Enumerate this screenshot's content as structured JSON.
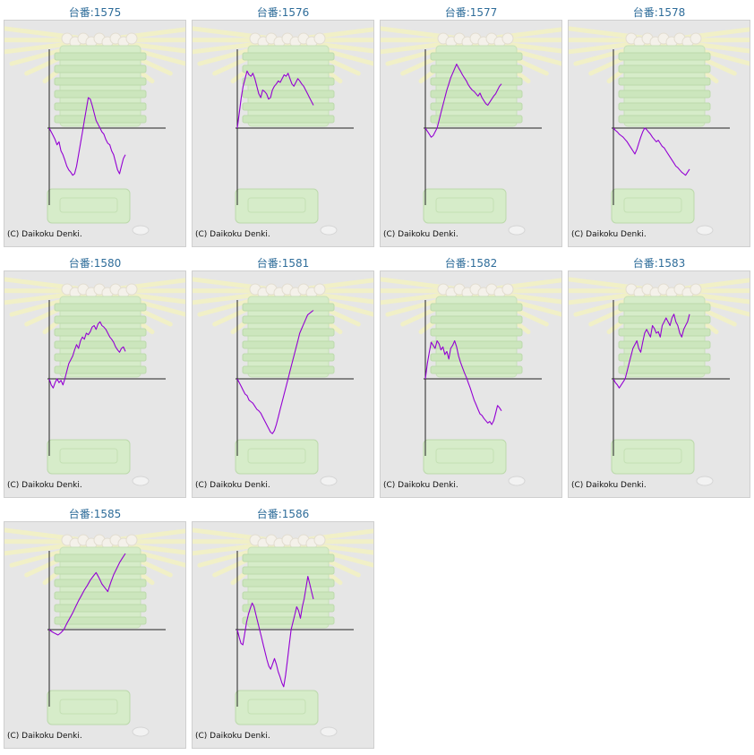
{
  "colors": {
    "title": "#2f6d9a",
    "line": "#9400d3",
    "axis": "#222222",
    "panel_bg": "#e6e6e6"
  },
  "copyright": "(C) Daikoku Denki.",
  "chart_data": [
    {
      "type": "line",
      "title": "台番:1575",
      "values": [
        0,
        -5,
        -10,
        -15,
        -22,
        -18,
        -30,
        -35,
        -42,
        -50,
        -55,
        -58,
        -62,
        -60,
        -50,
        -35,
        -20,
        -5,
        10,
        25,
        40,
        38,
        30,
        20,
        10,
        5,
        0,
        -5,
        -8,
        -15,
        -20,
        -22,
        -30,
        -35,
        -45,
        -55,
        -60,
        -50,
        -40,
        -35
      ]
    },
    {
      "type": "line",
      "title": "台番:1576",
      "values": [
        0,
        20,
        40,
        55,
        65,
        75,
        70,
        68,
        72,
        65,
        55,
        45,
        40,
        50,
        48,
        45,
        38,
        40,
        50,
        55,
        58,
        62,
        60,
        65,
        70,
        68,
        72,
        65,
        58,
        55,
        60,
        65,
        62,
        58,
        55,
        50,
        45,
        40,
        35,
        30
      ]
    },
    {
      "type": "line",
      "title": "台番:1577",
      "values": [
        0,
        -4,
        -8,
        -12,
        -10,
        -5,
        0,
        10,
        20,
        30,
        40,
        50,
        58,
        66,
        72,
        78,
        84,
        79,
        75,
        70,
        66,
        62,
        57,
        53,
        50,
        48,
        45,
        42,
        46,
        40,
        36,
        32,
        30,
        34,
        38,
        42,
        45,
        50,
        55,
        58
      ]
    },
    {
      "type": "line",
      "title": "台番:1578",
      "values": [
        0,
        -3,
        -5,
        -8,
        -10,
        -12,
        -15,
        -18,
        -22,
        -26,
        -30,
        -34,
        -28,
        -20,
        -12,
        -5,
        0,
        -2,
        -5,
        -8,
        -12,
        -15,
        -18,
        -16,
        -20,
        -24,
        -26,
        -30,
        -34,
        -38,
        -42,
        -46,
        -50,
        -52,
        -55,
        -58,
        -60,
        -62,
        -58,
        -54
      ]
    },
    {
      "type": "line",
      "title": "台番:1580",
      "values": [
        0,
        -8,
        -12,
        -5,
        0,
        -5,
        -2,
        -8,
        0,
        10,
        20,
        25,
        30,
        38,
        45,
        40,
        50,
        55,
        52,
        60,
        58,
        62,
        68,
        70,
        65,
        72,
        75,
        70,
        68,
        65,
        60,
        55,
        52,
        48,
        42,
        38,
        35,
        40,
        42,
        36
      ]
    },
    {
      "type": "line",
      "title": "台番:1581",
      "values": [
        0,
        -5,
        -10,
        -15,
        -20,
        -22,
        -28,
        -30,
        -32,
        -36,
        -40,
        -42,
        -45,
        -50,
        -55,
        -60,
        -65,
        -70,
        -72,
        -68,
        -60,
        -50,
        -40,
        -30,
        -20,
        -10,
        0,
        10,
        20,
        30,
        40,
        50,
        60,
        66,
        72,
        78,
        84,
        86,
        88,
        90
      ]
    },
    {
      "type": "line",
      "title": "台番:1582",
      "values": [
        0,
        20,
        35,
        48,
        44,
        40,
        50,
        46,
        38,
        42,
        32,
        36,
        26,
        40,
        44,
        50,
        42,
        30,
        22,
        15,
        8,
        2,
        -5,
        -12,
        -20,
        -28,
        -34,
        -40,
        -46,
        -48,
        -52,
        -55,
        -58,
        -56,
        -60,
        -55,
        -45,
        -35,
        -38,
        -42
      ]
    },
    {
      "type": "line",
      "title": "台番:1583",
      "values": [
        0,
        -5,
        -8,
        -12,
        -8,
        -4,
        0,
        10,
        20,
        30,
        40,
        45,
        50,
        40,
        35,
        48,
        60,
        65,
        60,
        55,
        70,
        66,
        60,
        62,
        55,
        70,
        75,
        80,
        75,
        70,
        80,
        85,
        75,
        70,
        60,
        55,
        65,
        70,
        75,
        85
      ]
    },
    {
      "type": "line",
      "title": "台番:1585",
      "values": [
        0,
        -3,
        -5,
        -7,
        -4,
        0,
        8,
        15,
        22,
        30,
        38,
        45,
        52,
        58,
        65,
        70,
        75,
        68,
        60,
        55,
        50,
        62,
        72,
        80,
        88,
        94,
        100
      ]
    },
    {
      "type": "line",
      "title": "台番:1586",
      "values": [
        0,
        -10,
        -18,
        -20,
        -5,
        10,
        20,
        28,
        35,
        30,
        20,
        10,
        0,
        -10,
        -20,
        -30,
        -40,
        -48,
        -52,
        -45,
        -38,
        -45,
        -55,
        -62,
        -70,
        -75,
        -60,
        -40,
        -20,
        0,
        10,
        20,
        30,
        25,
        15,
        30,
        40,
        55,
        70,
        60,
        50,
        40
      ]
    }
  ]
}
